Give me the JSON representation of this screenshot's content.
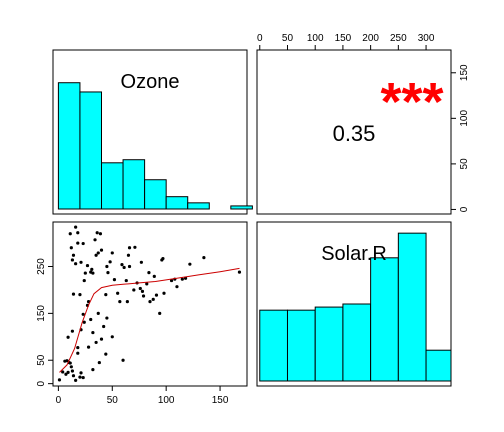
{
  "chart_data": {
    "type": "scatter-matrix",
    "variables": [
      "Ozone",
      "Solar.R"
    ],
    "colors": {
      "histogram_fill": "#00ffff",
      "points": "#000000",
      "smooth_line": "#cc0000",
      "significance": "#ff0000",
      "frame": "#000000"
    },
    "ozone_axis": {
      "range": [
        -5,
        175
      ],
      "ticks": [
        0,
        50,
        100,
        150
      ],
      "tick_labels": [
        "0",
        "50",
        "100",
        "150"
      ]
    },
    "solar_axis": {
      "range": [
        -5,
        345
      ],
      "ticks": [
        0,
        50,
        100,
        150,
        200,
        250,
        300
      ],
      "tick_labels": [
        "0",
        "50",
        "100",
        "150",
        "200",
        "250",
        "300"
      ]
    },
    "left_axis": {
      "ticks": [
        0,
        50,
        150,
        250
      ],
      "tick_labels": [
        "0",
        "50",
        "150",
        "250"
      ]
    },
    "right_axis": {
      "ticks": [
        0,
        50,
        100,
        150
      ],
      "tick_labels": [
        "0",
        "50",
        "100",
        "150"
      ]
    },
    "ozone_histogram": {
      "breaks": [
        0,
        20,
        40,
        60,
        80,
        100,
        120,
        140,
        160,
        180
      ],
      "heights": [
        0.82,
        0.76,
        0.3,
        0.32,
        0.19,
        0.08,
        0.04,
        0.0,
        0.02
      ]
    },
    "solar_histogram": {
      "breaks": [
        0,
        50,
        100,
        150,
        200,
        250,
        300,
        350
      ],
      "heights": [
        0.46,
        0.46,
        0.48,
        0.5,
        0.8,
        0.96,
        0.2
      ]
    },
    "correlation": {
      "value": "0.35",
      "significance": "***"
    },
    "scatter_points": [
      [
        1,
        8
      ],
      [
        4,
        25
      ],
      [
        6,
        48
      ],
      [
        7,
        20
      ],
      [
        8,
        49
      ],
      [
        9,
        24
      ],
      [
        10,
        45
      ],
      [
        11,
        44
      ],
      [
        12,
        36
      ],
      [
        13,
        27
      ],
      [
        14,
        17
      ],
      [
        16,
        7
      ],
      [
        18,
        65
      ],
      [
        20,
        14
      ],
      [
        21,
        23
      ],
      [
        23,
        13
      ],
      [
        9,
        99
      ],
      [
        11,
        320
      ],
      [
        12,
        290
      ],
      [
        13,
        264
      ],
      [
        14,
        274
      ],
      [
        16,
        256
      ],
      [
        18,
        300
      ],
      [
        13,
        112
      ],
      [
        14,
        191
      ],
      [
        16,
        334
      ],
      [
        18,
        322
      ],
      [
        20,
        190
      ],
      [
        21,
        259
      ],
      [
        23,
        299
      ],
      [
        24,
        220
      ],
      [
        25,
        236
      ],
      [
        27,
        252
      ],
      [
        28,
        175
      ],
      [
        30,
        238
      ],
      [
        31,
        244
      ],
      [
        32,
        236
      ],
      [
        34,
        307
      ],
      [
        35,
        274
      ],
      [
        36,
        322
      ],
      [
        37,
        279
      ],
      [
        39,
        320
      ],
      [
        40,
        285
      ],
      [
        44,
        190
      ],
      [
        45,
        250
      ],
      [
        21,
        115
      ],
      [
        18,
        77
      ],
      [
        24,
        131
      ],
      [
        28,
        78
      ],
      [
        32,
        109
      ],
      [
        35,
        88
      ],
      [
        37,
        150
      ],
      [
        30,
        137
      ],
      [
        27,
        167
      ],
      [
        23,
        148
      ],
      [
        44,
        63
      ],
      [
        46,
        237
      ],
      [
        48,
        260
      ],
      [
        50,
        279
      ],
      [
        52,
        222
      ],
      [
        55,
        193
      ],
      [
        59,
        254
      ],
      [
        61,
        248
      ],
      [
        63,
        220
      ],
      [
        64,
        175
      ],
      [
        65,
        274
      ],
      [
        66,
        290
      ],
      [
        66,
        250
      ],
      [
        71,
        291
      ],
      [
        73,
        215
      ],
      [
        76,
        203
      ],
      [
        77,
        259
      ],
      [
        78,
        197
      ],
      [
        79,
        187
      ],
      [
        82,
        213
      ],
      [
        84,
        237
      ],
      [
        85,
        175
      ],
      [
        89,
        229
      ],
      [
        91,
        189
      ],
      [
        96,
        264
      ],
      [
        97,
        267
      ],
      [
        108,
        223
      ],
      [
        110,
        207
      ],
      [
        115,
        223
      ],
      [
        118,
        225
      ],
      [
        122,
        255
      ],
      [
        135,
        269
      ],
      [
        168,
        238
      ],
      [
        40,
        95
      ],
      [
        45,
        140
      ],
      [
        38,
        45
      ],
      [
        32,
        30
      ],
      [
        60,
        50
      ],
      [
        50,
        100
      ],
      [
        42,
        122
      ],
      [
        70,
        200
      ],
      [
        88,
        180
      ],
      [
        98,
        193
      ],
      [
        105,
        220
      ],
      [
        94,
        150
      ],
      [
        57,
        175
      ]
    ],
    "smooth_line": [
      [
        1,
        24
      ],
      [
        8,
        40
      ],
      [
        15,
        75
      ],
      [
        22,
        130
      ],
      [
        28,
        168
      ],
      [
        33,
        192
      ],
      [
        40,
        205
      ],
      [
        50,
        210
      ],
      [
        60,
        212
      ],
      [
        75,
        215
      ],
      [
        90,
        218
      ],
      [
        110,
        225
      ],
      [
        130,
        232
      ],
      [
        150,
        239
      ],
      [
        168,
        246
      ]
    ]
  }
}
